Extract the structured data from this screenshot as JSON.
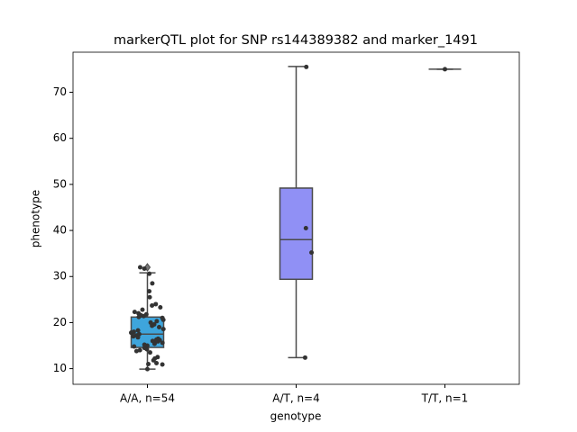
{
  "chart_data": {
    "type": "box",
    "title": "markerQTL plot for SNP rs144389382 and marker_1491",
    "xlabel": "genotype",
    "ylabel": "phenotype",
    "categories": [
      "A/A, n=54",
      "A/T, n=4",
      "T/T, n=1"
    ],
    "ylim": [
      6.6,
      78.7
    ],
    "yticks": [
      10,
      20,
      30,
      40,
      50,
      60,
      70
    ],
    "boxes": [
      {
        "color": "#3ea5dc",
        "whislo": 9.9,
        "q1": 14.6,
        "med": 17.5,
        "q3": 21.2,
        "whishi": 30.8,
        "fliers": [
          32.0
        ],
        "points": [
          9.9,
          10.9,
          11.0,
          11.2,
          11.8,
          12.2,
          12.5,
          13.5,
          13.8,
          14.0,
          14.2,
          14.5,
          14.8,
          15.0,
          15.2,
          15.4,
          15.6,
          15.8,
          15.9,
          16.0,
          16.2,
          16.3,
          16.5,
          16.8,
          17.0,
          17.2,
          17.5,
          17.8,
          18.0,
          18.3,
          18.6,
          19.0,
          19.3,
          19.6,
          20.0,
          20.3,
          20.6,
          21.0,
          21.2,
          21.4,
          21.6,
          21.8,
          22.0,
          22.3,
          22.8,
          23.3,
          23.7,
          24.0,
          25.5,
          26.8,
          28.5,
          30.6,
          31.7,
          32.0
        ]
      },
      {
        "color": "#9090f5",
        "whislo": 12.4,
        "q1": 29.4,
        "med": 38.0,
        "q3": 49.2,
        "whishi": 75.6,
        "fliers": [],
        "points": [
          75.5,
          40.5,
          35.2,
          12.4
        ]
      },
      {
        "color": "#d0a0e8",
        "whislo": 75.0,
        "q1": 75.0,
        "med": 75.0,
        "q3": 75.0,
        "whishi": 75.0,
        "fliers": [],
        "points": [
          75.0
        ]
      }
    ]
  }
}
